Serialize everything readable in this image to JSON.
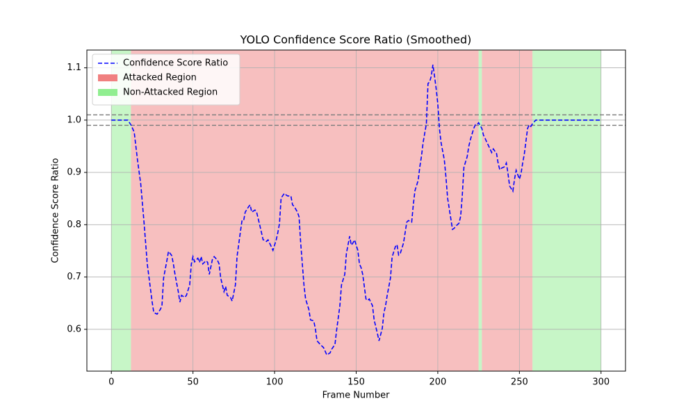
{
  "chart_data": {
    "type": "line",
    "title": "YOLO Confidence Score Ratio (Smoothed)",
    "x_label": "Frame Number",
    "y_label": "Confidence Score Ratio",
    "xlim": [
      -15,
      315
    ],
    "ylim": [
      0.52,
      1.134
    ],
    "xticks": [
      0,
      50,
      100,
      150,
      200,
      250,
      300
    ],
    "yticks": [
      0.6,
      0.7,
      0.8,
      0.9,
      {
        "value": 1,
        "label": "1.0"
      },
      1.1
    ],
    "grid": true,
    "legend": "upper left",
    "hlines": [
      1.01,
      0.99
    ],
    "hline_color": "#808080",
    "series": [
      {
        "name": "Confidence Score Ratio",
        "color": "#0000ff",
        "style": "dashed",
        "x": [
          0,
          10,
          12,
          14,
          16,
          18,
          20,
          22,
          25,
          26,
          28,
          30,
          31,
          32,
          34,
          35,
          37,
          38,
          39,
          41,
          42,
          43,
          45,
          46,
          48,
          49,
          50,
          51,
          53,
          54,
          55,
          56,
          58,
          59,
          60,
          62,
          63,
          65,
          66,
          67,
          69,
          70,
          71,
          73,
          74,
          76,
          77,
          79,
          80,
          81,
          82,
          84,
          85,
          86,
          88,
          89,
          91,
          93,
          94,
          95,
          96,
          98,
          99,
          101,
          102,
          103,
          104,
          106,
          107,
          108,
          110,
          111,
          112,
          114,
          115,
          116,
          118,
          119,
          121,
          122,
          124,
          125,
          126,
          128,
          130,
          131,
          132,
          134,
          135,
          137,
          138,
          140,
          141,
          143,
          144,
          146,
          147,
          148,
          149,
          151,
          152,
          153,
          154,
          156,
          157,
          158,
          160,
          161,
          163,
          164,
          166,
          167,
          168,
          169,
          171,
          172,
          174,
          175,
          176,
          177,
          179,
          180,
          181,
          182,
          184,
          185,
          186,
          188,
          189,
          190,
          191,
          193,
          194,
          195,
          196,
          197,
          198,
          199,
          200,
          201,
          202,
          204,
          205,
          206,
          208,
          209,
          210,
          211,
          213,
          214,
          215,
          216,
          218,
          219,
          220,
          222,
          223,
          224,
          225,
          227,
          228,
          229,
          230,
          232,
          233,
          234,
          236,
          237,
          238,
          239,
          241,
          242,
          243,
          244,
          246,
          247,
          248,
          250,
          251,
          252,
          253,
          255,
          256,
          257,
          258,
          260,
          300
        ],
        "values": [
          1.0,
          1.0,
          0.991,
          0.977,
          0.924,
          0.878,
          0.805,
          0.725,
          0.652,
          0.632,
          0.629,
          0.638,
          0.645,
          0.698,
          0.731,
          0.749,
          0.741,
          0.725,
          0.705,
          0.672,
          0.652,
          0.665,
          0.661,
          0.665,
          0.685,
          0.725,
          0.739,
          0.729,
          0.736,
          0.728,
          0.739,
          0.725,
          0.731,
          0.728,
          0.705,
          0.735,
          0.739,
          0.732,
          0.725,
          0.698,
          0.672,
          0.682,
          0.665,
          0.661,
          0.654,
          0.685,
          0.739,
          0.785,
          0.807,
          0.807,
          0.824,
          0.834,
          0.838,
          0.824,
          0.828,
          0.824,
          0.798,
          0.771,
          0.771,
          0.768,
          0.771,
          0.758,
          0.751,
          0.771,
          0.785,
          0.802,
          0.851,
          0.86,
          0.857,
          0.855,
          0.855,
          0.838,
          0.835,
          0.824,
          0.815,
          0.765,
          0.685,
          0.658,
          0.638,
          0.618,
          0.616,
          0.601,
          0.578,
          0.571,
          0.565,
          0.558,
          0.551,
          0.555,
          0.562,
          0.571,
          0.598,
          0.645,
          0.685,
          0.705,
          0.745,
          0.778,
          0.761,
          0.765,
          0.771,
          0.751,
          0.725,
          0.718,
          0.705,
          0.658,
          0.655,
          0.658,
          0.645,
          0.618,
          0.592,
          0.578,
          0.602,
          0.632,
          0.645,
          0.665,
          0.698,
          0.738,
          0.758,
          0.762,
          0.742,
          0.745,
          0.765,
          0.785,
          0.805,
          0.808,
          0.805,
          0.838,
          0.865,
          0.885,
          0.911,
          0.931,
          0.957,
          0.993,
          1.07,
          1.073,
          1.084,
          1.106,
          1.084,
          1.06,
          1.031,
          0.984,
          0.957,
          0.924,
          0.891,
          0.851,
          0.811,
          0.791,
          0.793,
          0.797,
          0.803,
          0.816,
          0.856,
          0.91,
          0.93,
          0.95,
          0.963,
          0.984,
          0.991,
          0.991,
          0.995,
          0.984,
          0.971,
          0.965,
          0.958,
          0.945,
          0.938,
          0.945,
          0.936,
          0.917,
          0.905,
          0.908,
          0.911,
          0.918,
          0.898,
          0.874,
          0.864,
          0.887,
          0.904,
          0.887,
          0.898,
          0.918,
          0.935,
          0.984,
          0.991,
          0.988,
          0.993,
          1.0,
          1.0
        ]
      },
      {
        "name": "Attacked Region",
        "color": "#f08080",
        "spans": [
          [
            12,
            225
          ],
          [
            227,
            258
          ]
        ]
      },
      {
        "name": "Non-Attacked Region",
        "color": "#90ee90",
        "spans": [
          [
            0,
            12
          ],
          [
            225,
            227
          ],
          [
            258,
            300
          ]
        ]
      }
    ]
  }
}
